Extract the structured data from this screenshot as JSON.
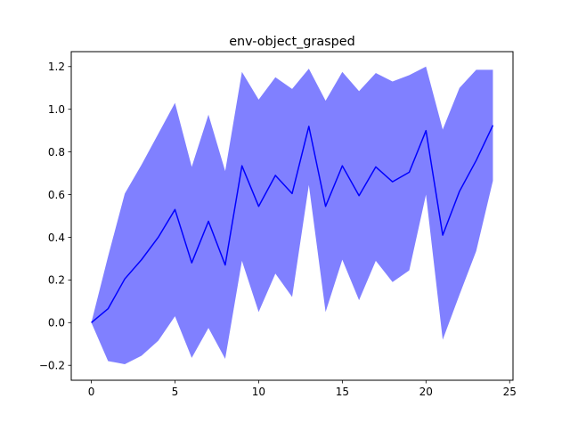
{
  "chart_data": {
    "type": "line",
    "title": "env-object_grasped",
    "xlabel": "",
    "ylabel": "",
    "xlim": [
      -1.2,
      25.2
    ],
    "ylim": [
      -0.27,
      1.27
    ],
    "xticks": [
      0,
      5,
      10,
      15,
      20,
      25
    ],
    "yticks": [
      -0.2,
      0.0,
      0.2,
      0.4,
      0.6,
      0.8,
      1.0,
      1.2
    ],
    "grid": false,
    "legend": "none",
    "x": [
      0,
      1,
      2,
      3,
      4,
      5,
      6,
      7,
      8,
      9,
      10,
      11,
      12,
      13,
      14,
      15,
      16,
      17,
      18,
      19,
      20,
      21,
      22,
      23,
      24
    ],
    "series": [
      {
        "color": "#0000ff",
        "fill_color": "#8080ff",
        "mean": [
          0.0,
          0.065,
          0.205,
          0.295,
          0.4,
          0.53,
          0.28,
          0.475,
          0.27,
          0.735,
          0.545,
          0.69,
          0.605,
          0.92,
          0.545,
          0.735,
          0.595,
          0.73,
          0.66,
          0.705,
          0.9,
          0.41,
          0.615,
          0.76,
          0.925
        ],
        "upper": [
          0.0,
          0.31,
          0.605,
          0.74,
          0.885,
          1.03,
          0.73,
          0.975,
          0.71,
          1.175,
          1.045,
          1.15,
          1.095,
          1.19,
          1.04,
          1.175,
          1.085,
          1.17,
          1.13,
          1.16,
          1.2,
          0.905,
          1.1,
          1.185,
          1.185
        ],
        "lower": [
          0.0,
          -0.18,
          -0.195,
          -0.155,
          -0.085,
          0.03,
          -0.165,
          -0.025,
          -0.17,
          0.29,
          0.05,
          0.23,
          0.12,
          0.645,
          0.05,
          0.295,
          0.105,
          0.29,
          0.19,
          0.245,
          0.6,
          -0.08,
          0.13,
          0.335,
          0.665
        ]
      }
    ]
  }
}
